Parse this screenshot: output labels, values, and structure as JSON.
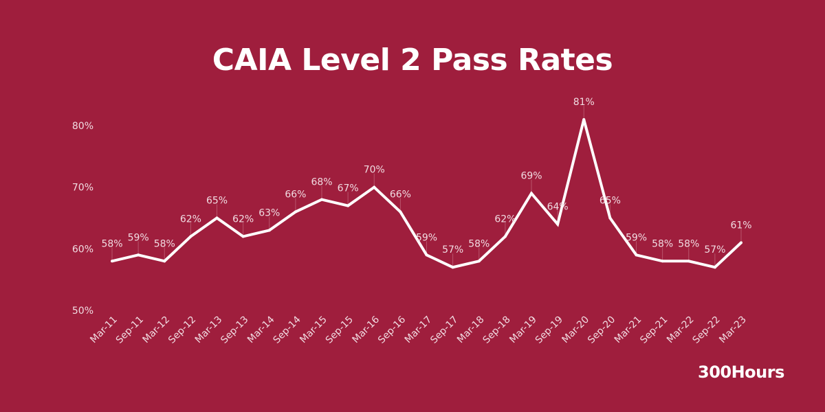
{
  "chart_data": {
    "type": "line",
    "title": "CAIA Level 2 Pass Rates",
    "xlabel": "",
    "ylabel": "",
    "categories": [
      "Mar-11",
      "Sep-11",
      "Mar-12",
      "Sep-12",
      "Mar-13",
      "Sep-13",
      "Mar-14",
      "Sep-14",
      "Mar-15",
      "Sep-15",
      "Mar-16",
      "Sep-16",
      "Mar-17",
      "Sep-17",
      "Mar-18",
      "Sep-18",
      "Mar-19",
      "Sep-19",
      "Mar-20",
      "Sep-20",
      "Mar-21",
      "Sep-21",
      "Mar-22",
      "Sep-22",
      "Mar-23"
    ],
    "values": [
      58,
      59,
      58,
      62,
      65,
      62,
      63,
      66,
      68,
      67,
      70,
      66,
      59,
      57,
      58,
      62,
      69,
      64,
      81,
      65,
      59,
      58,
      58,
      57,
      61
    ],
    "data_labels": [
      "58%",
      "59%",
      "58%",
      "62%",
      "65%",
      "62%",
      "63%",
      "66%",
      "68%",
      "67%",
      "70%",
      "66%",
      "59%",
      "57%",
      "58%",
      "62%",
      "69%",
      "64%",
      "81%",
      "65%",
      "59%",
      "58%",
      "58%",
      "57%",
      "61%"
    ],
    "ylim": [
      50,
      80
    ],
    "yticks": [
      50,
      60,
      70,
      80
    ],
    "ytick_labels": [
      "50%",
      "60%",
      "70%",
      "80%"
    ],
    "grid": false,
    "legend": "none",
    "colors": {
      "background": "#9f1e3d",
      "line": "#ffffff",
      "text": "#f1dce2"
    }
  },
  "brand": "300Hours"
}
